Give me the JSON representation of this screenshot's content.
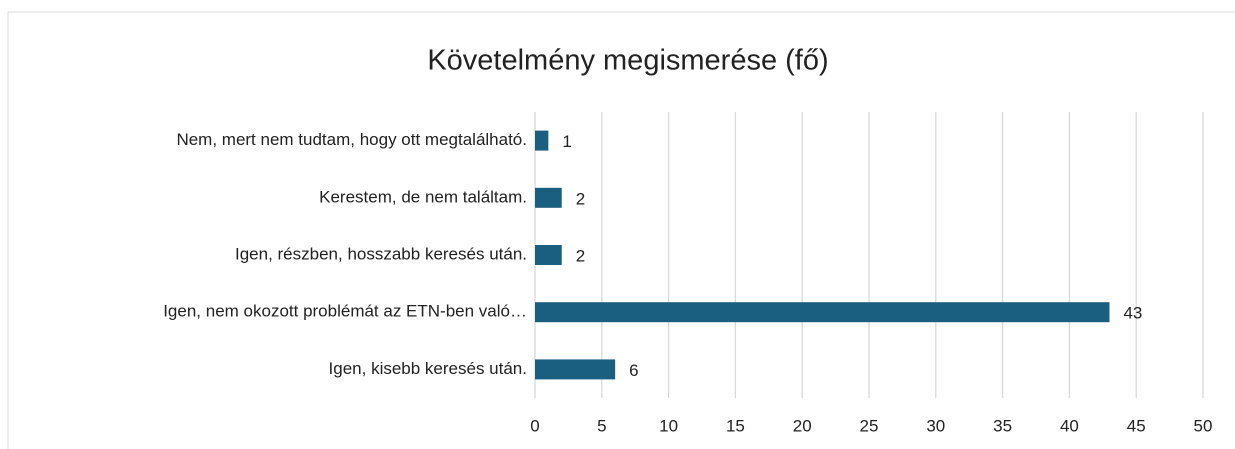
{
  "chart_data": {
    "type": "hbar",
    "title": "Követelmény megismerése (fő)",
    "categories": [
      "Nem, mert nem tudtam, hogy ott megtalálható.",
      "Kerestem, de nem találtam.",
      "Igen, részben, hosszabb keresés után.",
      "Igen, nem okozott problémát az ETN-ben való…",
      "Igen, kisebb keresés után."
    ],
    "values": [
      1,
      2,
      2,
      43,
      6
    ],
    "color": "#1b5f80",
    "xlim": [
      0,
      50
    ],
    "xticks": [
      0,
      5,
      10,
      15,
      20,
      25,
      30,
      35,
      40,
      45,
      50
    ],
    "grid": true
  }
}
